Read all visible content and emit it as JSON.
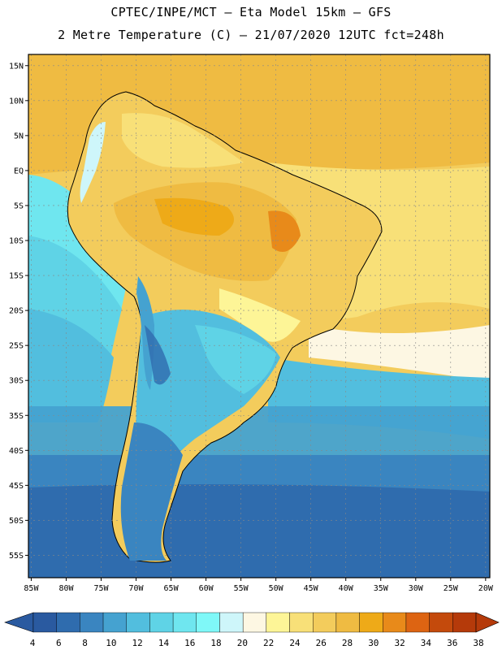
{
  "header": {
    "line1": "CPTEC/INPE/MCT –  Eta Model 15km – GFS",
    "line2": "2 Metre Temperature (C) – 21/07/2020 12UTC fct=248h"
  },
  "map": {
    "lat_labels": [
      "15N",
      "10N",
      "5N",
      "EQ",
      "5S",
      "10S",
      "15S",
      "20S",
      "25S",
      "30S",
      "35S",
      "40S",
      "45S",
      "50S",
      "55S"
    ],
    "lat_values": [
      15,
      10,
      5,
      0,
      -5,
      -10,
      -15,
      -20,
      -25,
      -30,
      -35,
      -40,
      -45,
      -50,
      -55
    ],
    "lon_labels": [
      "85W",
      "80W",
      "75W",
      "70W",
      "65W",
      "60W",
      "55W",
      "50W",
      "45W",
      "40W",
      "35W",
      "30W",
      "25W",
      "20W"
    ],
    "lon_values": [
      -85,
      -80,
      -75,
      -70,
      -65,
      -60,
      -55,
      -50,
      -45,
      -40,
      -35,
      -30,
      -25,
      -20
    ],
    "lon_range": [
      -85.4,
      -19.4
    ],
    "lat_range": [
      -58.2,
      16.6
    ]
  },
  "colorbar": {
    "labels": [
      "4",
      "6",
      "8",
      "10",
      "12",
      "14",
      "16",
      "18",
      "20",
      "22",
      "24",
      "26",
      "28",
      "30",
      "32",
      "34",
      "36",
      "38"
    ],
    "colors": [
      "#2a5aa0",
      "#2f6cae",
      "#3a85c0",
      "#45a2d0",
      "#52bede",
      "#5fd3e6",
      "#6fe6ef",
      "#7ff8f8",
      "#cef6fa",
      "#fdf7e3",
      "#fdf597",
      "#f8e078",
      "#f3cc5c",
      "#efbb42",
      "#eeaa18",
      "#e88a1a",
      "#dd6412",
      "#c44a0c",
      "#b53a0a"
    ]
  }
}
